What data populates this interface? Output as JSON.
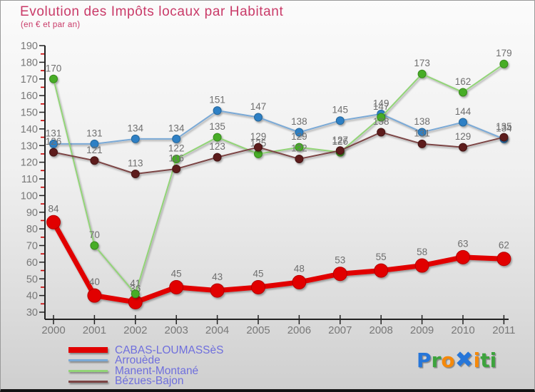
{
  "header": {
    "title": "Evolution des Impôts locaux par Habitant",
    "subtitle": "(en € et par an)",
    "title_color": "#c93a68"
  },
  "chart_data": {
    "type": "line",
    "x": [
      2000,
      2001,
      2002,
      2003,
      2004,
      2005,
      2006,
      2007,
      2008,
      2009,
      2010,
      2011
    ],
    "series": [
      {
        "name": "CABAS-LOUMASSèS",
        "values": [
          84,
          40,
          36,
          45,
          43,
          45,
          48,
          53,
          55,
          58,
          63,
          62
        ],
        "line_color": "#e10000",
        "marker_color": "#e10000",
        "marker_edge": "#b50000",
        "line_width": 7,
        "marker_radius": 9.5,
        "swatch_height": 8
      },
      {
        "name": "Arrouède",
        "values": [
          131,
          131,
          134,
          134,
          151,
          147,
          138,
          145,
          149,
          138,
          144,
          134
        ],
        "line_color": "#7aa9d6",
        "marker_color": "#2e80c5",
        "marker_edge": "#256699",
        "line_width": 2,
        "marker_radius": 5.5,
        "swatch_height": 3
      },
      {
        "name": "Manent-Montané",
        "values": [
          170,
          70,
          41,
          122,
          135,
          125,
          129,
          126,
          147,
          173,
          162,
          179
        ],
        "line_color": "#92d477",
        "marker_color": "#46ad27",
        "marker_edge": "#38891f",
        "line_width": 2,
        "marker_radius": 5.5,
        "swatch_height": 3
      },
      {
        "name": "Bézues-Bajon",
        "values": [
          126,
          121,
          113,
          116,
          123,
          129,
          122,
          127,
          138,
          131,
          129,
          135
        ],
        "line_color": "#7c4545",
        "marker_color": "#5d1f1f",
        "marker_edge": "#451414",
        "line_width": 2,
        "marker_radius": 5.5,
        "swatch_height": 3
      }
    ],
    "ylim": [
      30,
      190
    ],
    "ytick_step": 10,
    "yminor_step": 5,
    "grid": false,
    "legend_position": "bottom-left",
    "axis_color": "#222222",
    "minor_tick_color": "#cc0000",
    "value_label_color": "#6f6f6f",
    "tick_label_color": "#787878",
    "xlabel": "",
    "ylabel": ""
  },
  "legend_text_color": "#6f6fdd",
  "logo": {
    "letters": [
      {
        "ch": "P",
        "color": "#2676d9"
      },
      {
        "ch": "r",
        "color": "#3da33d"
      },
      {
        "ch": "o",
        "color": "#f5890a"
      },
      {
        "ch": "✖",
        "color": "#2676d9"
      },
      {
        "ch": "i",
        "color": "#f5890a"
      },
      {
        "ch": "t",
        "color": "#3da33d"
      },
      {
        "ch": "i",
        "color": "#3da33d"
      }
    ]
  }
}
